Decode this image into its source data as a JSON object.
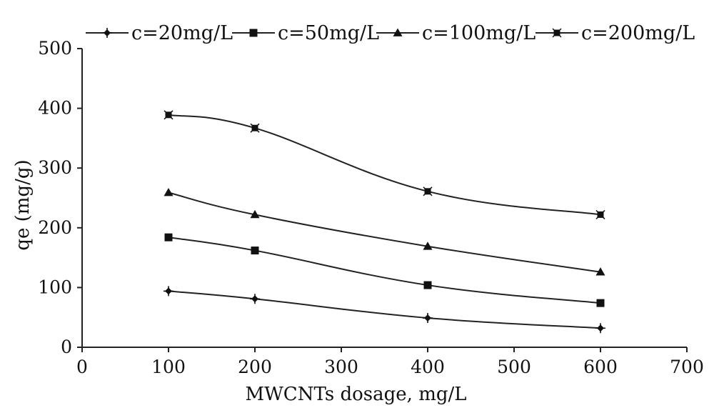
{
  "chart_data": {
    "type": "line",
    "title": "",
    "xlabel": "MWCNTs dosage, mg/L",
    "ylabel": "qe (mg/g)",
    "xlim": [
      0,
      700
    ],
    "ylim": [
      0,
      500
    ],
    "xticks": [
      0,
      100,
      200,
      300,
      400,
      500,
      600,
      700
    ],
    "yticks": [
      0,
      100,
      200,
      300,
      400,
      500
    ],
    "grid": false,
    "legend_position": "top",
    "series": [
      {
        "name": "c=20mg/L",
        "marker": "plus-diamond",
        "x": [
          100,
          200,
          400,
          600
        ],
        "y": [
          94,
          81,
          49,
          32
        ]
      },
      {
        "name": "c=50mg/L",
        "marker": "square",
        "x": [
          100,
          200,
          400,
          600
        ],
        "y": [
          184,
          162,
          104,
          74
        ]
      },
      {
        "name": "c=100mg/L",
        "marker": "triangle",
        "x": [
          100,
          200,
          400,
          600
        ],
        "y": [
          259,
          222,
          169,
          126
        ]
      },
      {
        "name": "c=200mg/L",
        "marker": "x-square",
        "x": [
          100,
          200,
          400,
          600
        ],
        "y": [
          389,
          367,
          261,
          222
        ]
      }
    ]
  }
}
